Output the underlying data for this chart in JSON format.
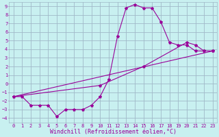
{
  "xlabel": "Windchill (Refroidissement éolien,°C)",
  "background_color": "#c8f0f0",
  "grid_color": "#a0b8c8",
  "line_color": "#990099",
  "xlim": [
    -0.5,
    23.5
  ],
  "ylim": [
    -4.5,
    9.5
  ],
  "xticks": [
    0,
    1,
    2,
    3,
    4,
    5,
    6,
    7,
    8,
    9,
    10,
    11,
    12,
    13,
    14,
    15,
    16,
    17,
    18,
    19,
    20,
    21,
    22,
    23
  ],
  "yticks": [
    -4,
    -3,
    -2,
    -1,
    0,
    1,
    2,
    3,
    4,
    5,
    6,
    7,
    8,
    9
  ],
  "line1_x": [
    0,
    1,
    2,
    3,
    4,
    5,
    6,
    7,
    8,
    9,
    10,
    11,
    12,
    13,
    14,
    15,
    16,
    17,
    18,
    19,
    20,
    21,
    22,
    23
  ],
  "line1_y": [
    -1.5,
    -1.5,
    -2.5,
    -2.5,
    -2.5,
    -3.8,
    -3.0,
    -3.0,
    -3.0,
    -2.5,
    -1.5,
    0.5,
    5.5,
    8.8,
    9.2,
    8.8,
    8.8,
    7.2,
    4.8,
    4.5,
    4.5,
    3.8,
    3.8,
    3.8
  ],
  "line2_x": [
    0,
    23
  ],
  "line2_y": [
    -1.5,
    3.8
  ],
  "line3_x": [
    0,
    10,
    15,
    20,
    21,
    22,
    23
  ],
  "line3_y": [
    -1.5,
    -0.2,
    2.0,
    4.8,
    4.5,
    3.8,
    3.8
  ],
  "fontsize_tick": 5,
  "fontsize_label": 6
}
